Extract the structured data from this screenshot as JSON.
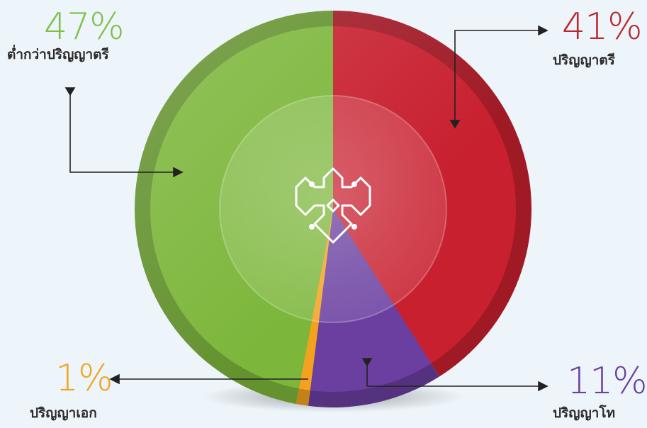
{
  "chart_data": {
    "type": "pie",
    "slices": [
      {
        "label": "ปริญญาตรี",
        "value": 41,
        "percent_label": "41%",
        "color": "#c8202f"
      },
      {
        "label": "ปริญญาโท",
        "value": 11,
        "percent_label": "11%",
        "color": "#6a3fa0"
      },
      {
        "label": "ปริญญาเอก",
        "value": 1,
        "percent_label": "1%",
        "color": "#f2a21f"
      },
      {
        "label": "ต่ำกว่าปริญญาตรี",
        "value": 47,
        "percent_label": "47%",
        "color": "#7cb63a"
      }
    ]
  }
}
